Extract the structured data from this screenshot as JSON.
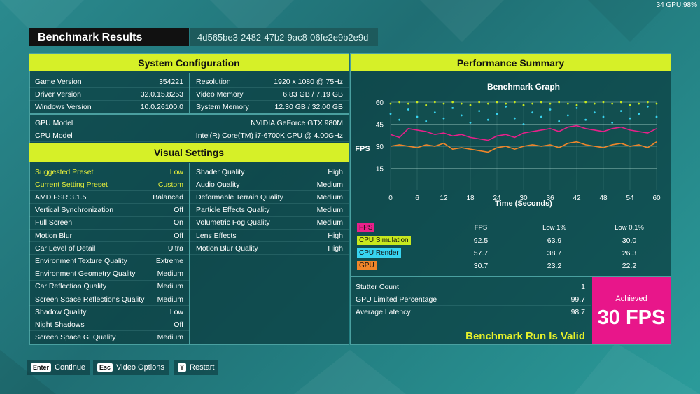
{
  "overlay": "34 GPU:98%",
  "header": {
    "title": "Benchmark Results",
    "run_id": "4d565be3-2482-47b2-9ac8-06fe2e9b2e9d"
  },
  "system_configuration": {
    "title": "System Configuration",
    "left": [
      [
        "Game Version",
        "354221"
      ],
      [
        "Driver Version",
        "32.0.15.8253"
      ],
      [
        "Windows Version",
        "10.0.26100.0"
      ]
    ],
    "right": [
      [
        "Resolution",
        "1920 x 1080 @ 75Hz"
      ],
      [
        "Video Memory",
        "6.83 GB / 7.19 GB"
      ],
      [
        "System Memory",
        "12.30 GB / 32.00 GB"
      ]
    ],
    "full": [
      [
        "GPU Model",
        "NVIDIA GeForce GTX 980M"
      ],
      [
        "CPU Model",
        "Intel(R) Core(TM) i7-6700K CPU @ 4.00GHz"
      ]
    ]
  },
  "visual_settings": {
    "title": "Visual Settings",
    "left": [
      [
        "Suggested Preset",
        "Low"
      ],
      [
        "Current Setting Preset",
        "Custom"
      ],
      [
        "AMD FSR 3.1.5",
        "Balanced"
      ],
      [
        "Vertical Synchronization",
        "Off"
      ],
      [
        "Full Screen",
        "On"
      ],
      [
        "Motion Blur",
        "Off"
      ],
      [
        "Car Level of Detail",
        "Ultra"
      ],
      [
        "Environment Texture Quality",
        "Extreme"
      ],
      [
        "Environment Geometry Quality",
        "Medium"
      ],
      [
        "Car Reflection Quality",
        "Medium"
      ],
      [
        "Screen Space Reflections Quality",
        "Medium"
      ],
      [
        "Shadow Quality",
        "Low"
      ],
      [
        "Night Shadows",
        "Off"
      ],
      [
        "Screen Space GI Quality",
        "Medium"
      ]
    ],
    "right": [
      [
        "Shader Quality",
        "High"
      ],
      [
        "Audio Quality",
        "Medium"
      ],
      [
        "Deformable Terrain Quality",
        "Medium"
      ],
      [
        "Particle Effects Quality",
        "Medium"
      ],
      [
        "Volumetric Fog Quality",
        "Medium"
      ],
      [
        "Lens Effects",
        "High"
      ],
      [
        "Motion Blur Quality",
        "High"
      ]
    ]
  },
  "performance_summary": {
    "title": "Performance Summary",
    "table": {
      "columns": [
        "FPS",
        "Low 1%",
        "Low 0.1%"
      ],
      "rows": [
        [
          "92.5",
          "63.9",
          "30.0"
        ],
        [
          "57.7",
          "38.7",
          "26.3"
        ],
        [
          "30.7",
          "23.2",
          "22.2"
        ]
      ],
      "row_series": [
        1,
        2,
        3
      ]
    },
    "stats": [
      [
        "Stutter Count",
        "1"
      ],
      [
        "GPU Limited Percentage",
        "99.7"
      ],
      [
        "Average Latency",
        "98.7"
      ]
    ],
    "validity": "Benchmark Run Is Valid",
    "achieved_label": "Achieved",
    "achieved_value": "30 FPS"
  },
  "chart_data": {
    "type": "line",
    "title": "Benchmark Graph",
    "x_label": "Time (Seconds)",
    "y_label": "FPS",
    "x": [
      0,
      2,
      4,
      6,
      8,
      10,
      12,
      14,
      16,
      18,
      20,
      22,
      24,
      26,
      28,
      30,
      32,
      34,
      36,
      38,
      40,
      42,
      44,
      46,
      48,
      50,
      52,
      54,
      56,
      58,
      60
    ],
    "series": [
      {
        "name": "FPS",
        "color": "#e8208a",
        "mark": "line",
        "values": [
          38,
          36,
          42,
          41,
          40,
          38,
          39,
          37,
          38,
          36,
          35,
          34,
          37,
          38,
          36,
          39,
          40,
          41,
          42,
          40,
          43,
          44,
          42,
          41,
          40,
          42,
          43,
          41,
          40,
          39,
          42
        ]
      },
      {
        "name": "CPU Simulation",
        "color": "#c8e81e",
        "mark": "dots",
        "values": [
          59,
          60,
          59,
          60,
          58,
          60,
          59,
          60,
          59,
          58,
          60,
          59,
          60,
          59,
          60,
          58,
          59,
          60,
          59,
          60,
          59,
          58,
          60,
          59,
          60,
          59,
          60,
          58,
          59,
          60,
          59
        ]
      },
      {
        "name": "CPU Render",
        "color": "#38d4f0",
        "mark": "dots",
        "values": [
          52,
          48,
          55,
          50,
          47,
          53,
          49,
          56,
          51,
          46,
          54,
          48,
          52,
          57,
          49,
          45,
          53,
          50,
          55,
          47,
          51,
          56,
          48,
          53,
          50,
          46,
          54,
          49,
          52,
          57,
          50
        ]
      },
      {
        "name": "GPU",
        "color": "#f0862a",
        "mark": "line",
        "values": [
          30,
          31,
          30,
          29,
          31,
          30,
          32,
          28,
          29,
          28,
          27,
          26,
          29,
          30,
          28,
          30,
          31,
          30,
          31,
          29,
          32,
          33,
          31,
          30,
          29,
          31,
          32,
          30,
          31,
          29,
          33
        ]
      }
    ],
    "xlim": [
      0,
      60
    ],
    "ylim": [
      0,
      60
    ],
    "xticks": [
      0,
      6,
      12,
      18,
      24,
      30,
      36,
      42,
      48,
      54,
      60
    ],
    "yticks": [
      15,
      30,
      45,
      60
    ],
    "grid": true
  },
  "footer": {
    "buttons": [
      {
        "key": "Enter",
        "label": "Continue"
      },
      {
        "key": "Esc",
        "label": "Video Options"
      },
      {
        "key": "Y",
        "label": "Restart"
      }
    ]
  }
}
